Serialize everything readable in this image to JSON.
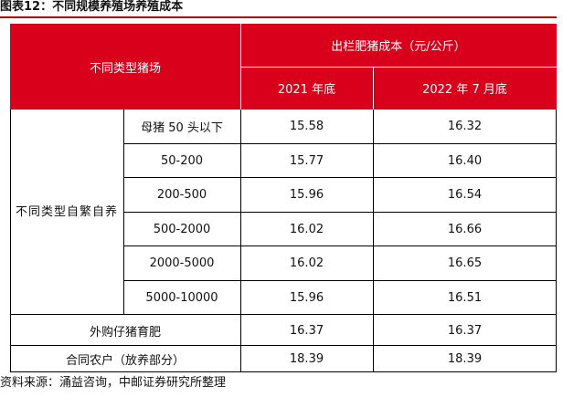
{
  "title": "图表12：不同规模养殖场养殖成本",
  "header": {
    "row_group": "不同类型猪场",
    "col_group": "出栏肥猪成本（元/公斤）",
    "col_2021": "2021 年底",
    "col_2022": "2022 年 7 月底"
  },
  "group_label": "不同类型自繁自养",
  "rows": [
    {
      "label": "母猪 50 头以下",
      "v2021": "15.58",
      "v2022": "16.32"
    },
    {
      "label": "50-200",
      "v2021": "15.77",
      "v2022": "16.40"
    },
    {
      "label": "200-500",
      "v2021": "15.96",
      "v2022": "16.54"
    },
    {
      "label": "500-2000",
      "v2021": "16.02",
      "v2022": "16.66"
    },
    {
      "label": "2000-5000",
      "v2021": "16.02",
      "v2022": "16.65"
    },
    {
      "label": "5000-10000",
      "v2021": "15.96",
      "v2022": "16.51"
    }
  ],
  "bottom_rows": [
    {
      "label": "外购仔猪育肥",
      "v2021": "16.37",
      "v2022": "16.37"
    },
    {
      "label": "合同农户（放养部分）",
      "v2021": "18.39",
      "v2022": "18.39"
    }
  ],
  "source": "资料来源：涌益咨询，中邮证券研究所整理",
  "colors": {
    "header_bg": "#d9001b",
    "header_text": "#ffffff",
    "title_rule": "#c00000"
  }
}
